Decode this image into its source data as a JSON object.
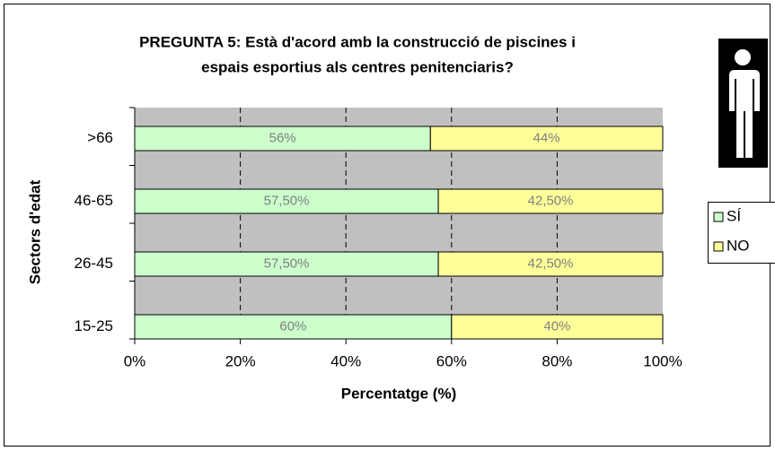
{
  "chart_data": {
    "type": "bar",
    "orientation": "horizontal",
    "stacked": true,
    "title": [
      "PREGUNTA 5: Està d'acord amb la construcció de piscines i",
      "espais esportius als centres penitenciaris?"
    ],
    "xlabel": "Percentatge (%)",
    "ylabel": "Sectors d'edat",
    "categories": [
      ">66",
      "46-65",
      "26-45",
      "15-25"
    ],
    "series": [
      {
        "name": "SÍ",
        "color": "#ccffcc",
        "values": [
          56,
          57.5,
          57.5,
          60
        ],
        "value_labels": [
          "56%",
          "57,50%",
          "57,50%",
          "60%"
        ]
      },
      {
        "name": "NO",
        "color": "#ffff99",
        "values": [
          44,
          42.5,
          42.5,
          40
        ],
        "value_labels": [
          "44%",
          "42,50%",
          "42,50%",
          "40%"
        ]
      }
    ],
    "xlim": [
      0,
      100
    ],
    "xticks": [
      {
        "value": 0,
        "label": "0%"
      },
      {
        "value": 20,
        "label": "20%"
      },
      {
        "value": 40,
        "label": "40%"
      },
      {
        "value": 60,
        "label": "60%"
      },
      {
        "value": 80,
        "label": "80%"
      },
      {
        "value": 100,
        "label": "100%"
      }
    ],
    "grid": true,
    "legend": "right"
  }
}
